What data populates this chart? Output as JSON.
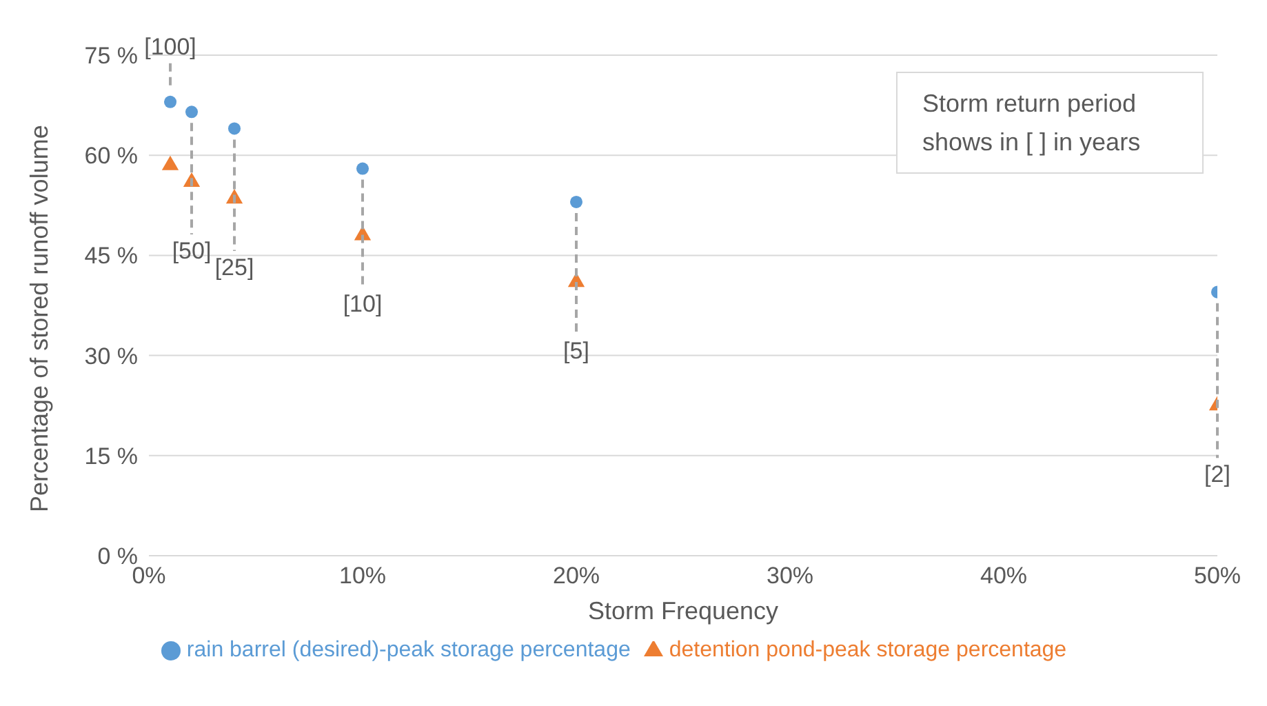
{
  "chart_data": {
    "type": "scatter",
    "xlabel": "Storm Frequency",
    "ylabel": "Percentage of stored  runoff volume",
    "x": [
      1,
      2,
      4,
      10,
      20,
      50
    ],
    "series": [
      {
        "name": "rain barrel (desired)-peak storage percentage",
        "color": "#5b9bd5",
        "marker": "circle",
        "values": [
          68,
          66.5,
          64,
          58,
          53,
          39.5
        ]
      },
      {
        "name": "detention pond-peak storage percentage",
        "color": "#ed7d31",
        "marker": "triangle",
        "values": [
          58.5,
          56,
          53.5,
          48,
          41,
          22.5
        ]
      }
    ],
    "xlim": [
      0,
      50
    ],
    "xticks": [
      {
        "value": 0,
        "label": "0%"
      },
      {
        "value": 10,
        "label": "10%"
      },
      {
        "value": 20,
        "label": "20%"
      },
      {
        "value": 30,
        "label": "30%"
      },
      {
        "value": 40,
        "label": "40%"
      },
      {
        "value": 50,
        "label": "50%"
      }
    ],
    "ylim": [
      0,
      75
    ],
    "yticks": [
      {
        "value": 0,
        "label": "0 %"
      },
      {
        "value": 15,
        "label": "15 %"
      },
      {
        "value": 30,
        "label": "30 %"
      },
      {
        "value": 45,
        "label": "45 %"
      },
      {
        "value": 60,
        "label": "60 %"
      },
      {
        "value": 75,
        "label": "75 %"
      }
    ],
    "grid": "y",
    "legend": "bottom",
    "annotations": [
      "Storm return period shows in [ ] in years",
      {
        "text": "[100]",
        "x": 1,
        "y": 68
      },
      {
        "text": "[50]",
        "x": 2,
        "y": 56
      },
      {
        "text": "[25]",
        "x": 4,
        "y": 53.5
      },
      {
        "text": "[10]",
        "x": 10,
        "y": 48
      },
      {
        "text": "[5]",
        "x": 20,
        "y": 41
      },
      {
        "text": "[2]",
        "x": 50,
        "y": 22.5
      }
    ]
  }
}
